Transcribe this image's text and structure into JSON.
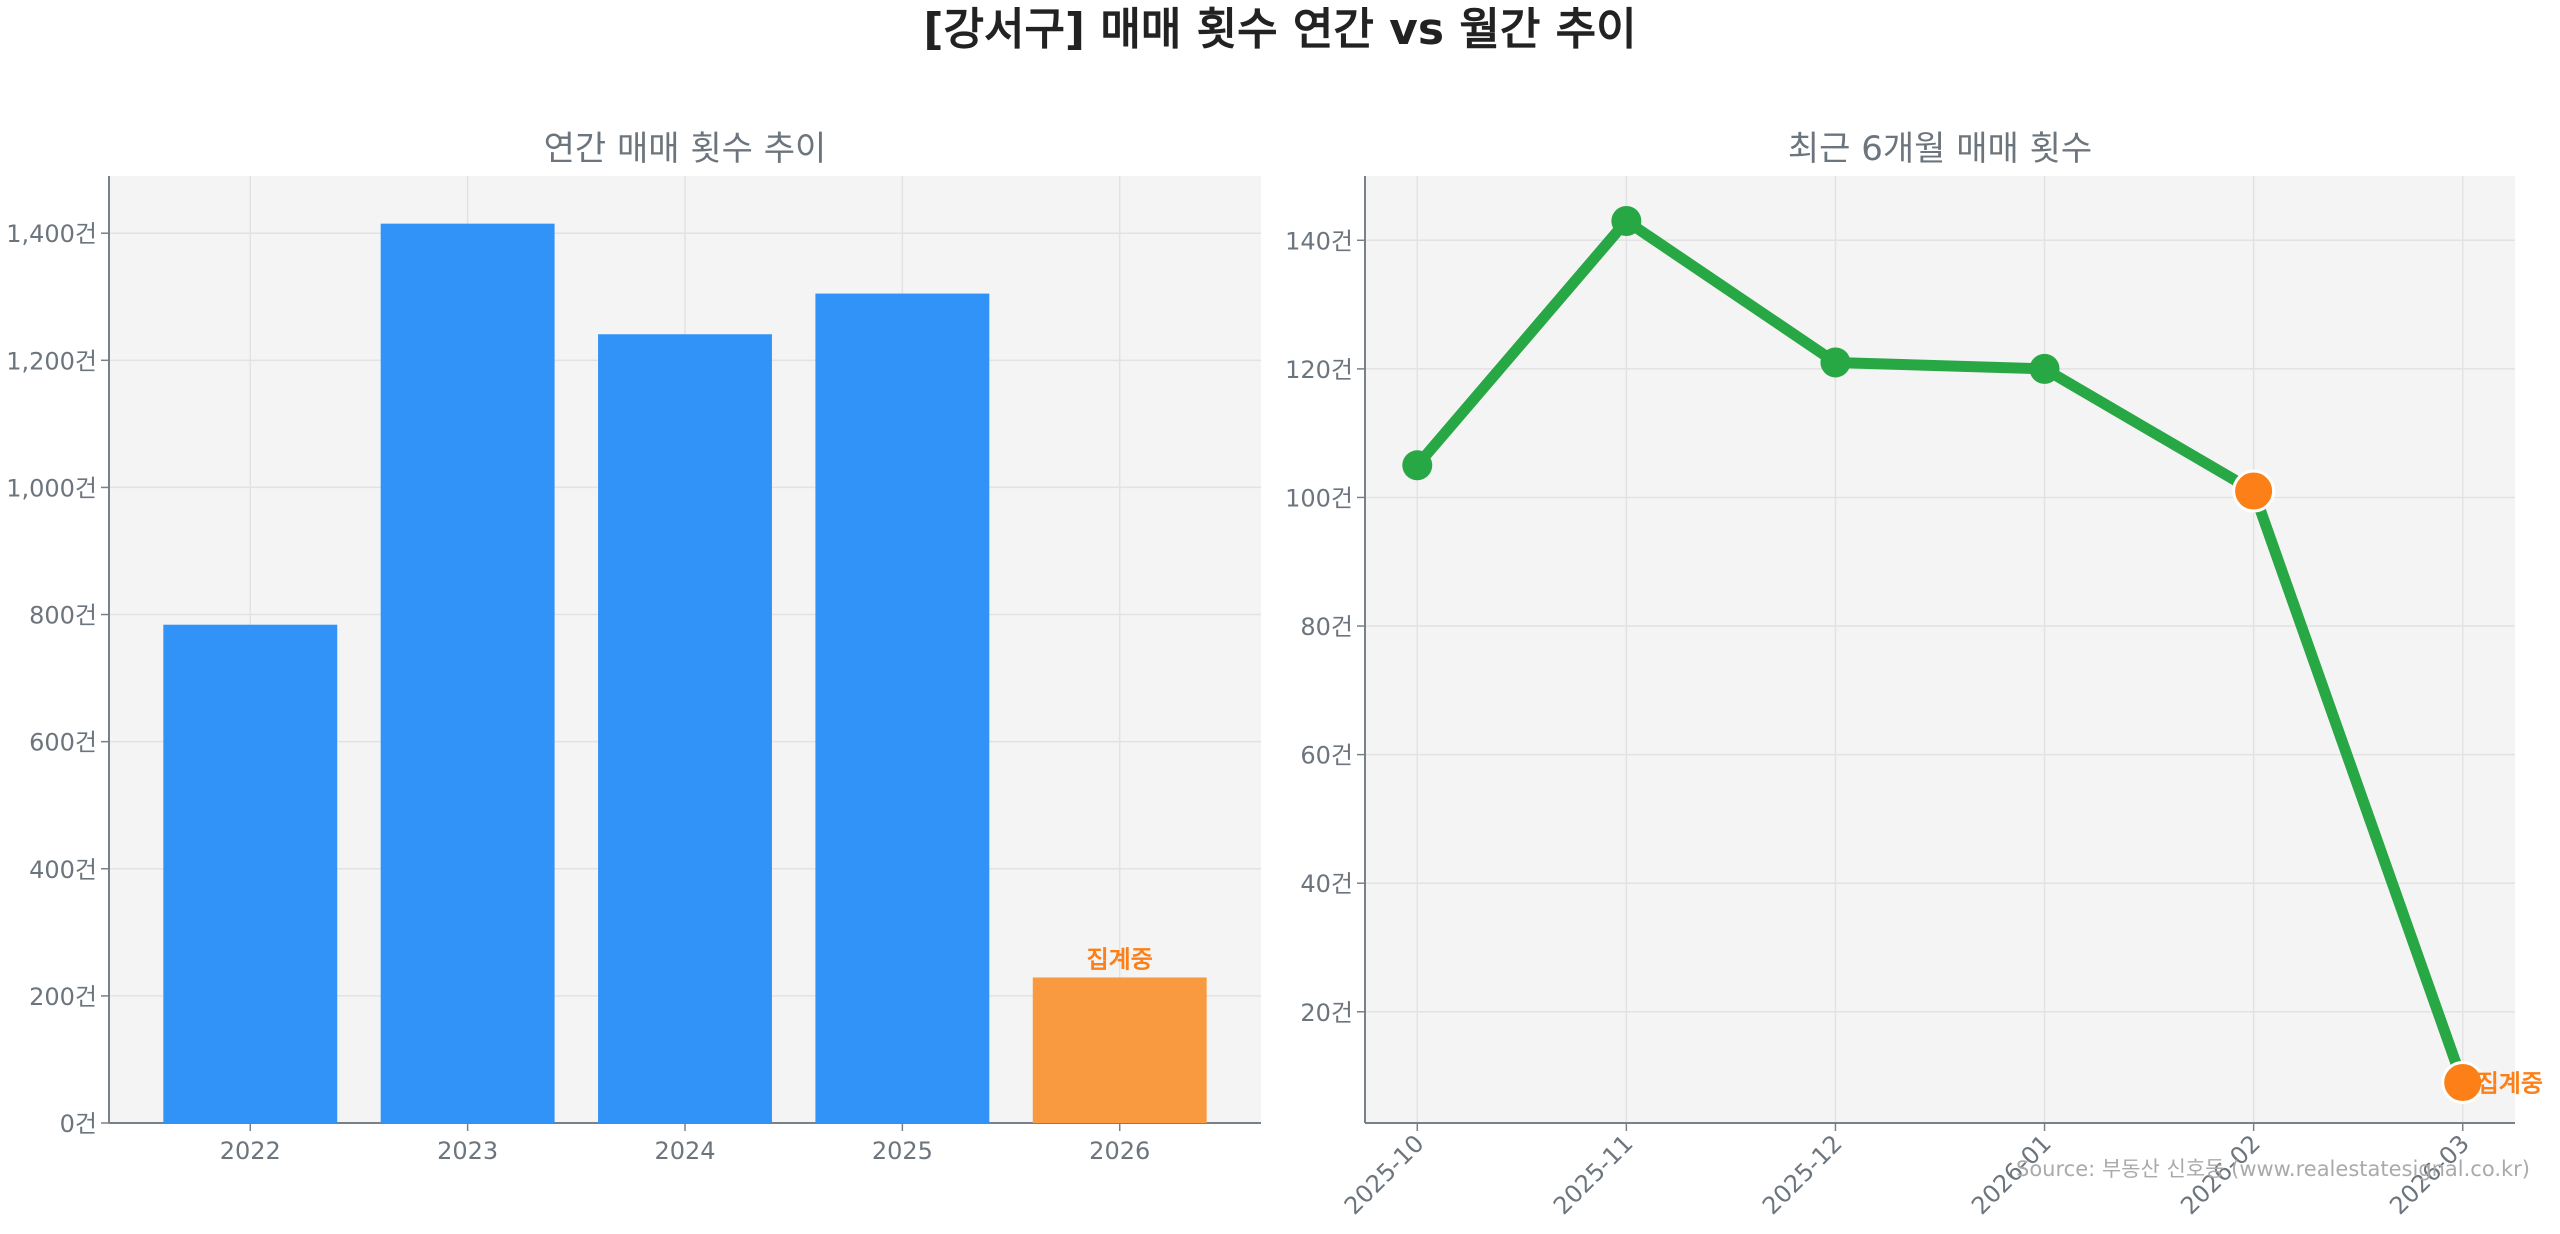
{
  "title": "[강서구] 매매 횟수 연간 vs 월간 추이",
  "source": "Source: 부동산 신호등 (www.realestatesignal.co.kr)",
  "colors": {
    "bar": "#3192f8",
    "bar_partial": "#f99a40",
    "line": "#28a745",
    "marker_partial": "#fd7f17",
    "note": "#fd7f17",
    "axes_bg": "#f4f4f4"
  },
  "chart_data": [
    {
      "type": "bar",
      "title": "연간 매매 횟수 추이",
      "categories": [
        "2022",
        "2023",
        "2024",
        "2025",
        "2026"
      ],
      "values": [
        784,
        1415,
        1241,
        1305,
        229
      ],
      "partial_flags": [
        false,
        false,
        false,
        false,
        true
      ],
      "annotation": "집계중",
      "yticks": [
        0,
        200,
        400,
        600,
        800,
        1000,
        1200,
        1400
      ],
      "ytick_labels": [
        "0건",
        "200건",
        "400건",
        "600건",
        "800건",
        "1,000건",
        "1,200건",
        "1,400건"
      ],
      "ylim": [
        0,
        1490
      ],
      "grid": true
    },
    {
      "type": "line",
      "title": "최근 6개월 매매 횟수",
      "categories": [
        "2025-10",
        "2025-11",
        "2025-12",
        "2026-01",
        "2026-02",
        "2026-03"
      ],
      "values": [
        105,
        143,
        121,
        120,
        101,
        9
      ],
      "partial_flags": [
        false,
        false,
        false,
        false,
        true,
        true
      ],
      "annotation": "집계중",
      "yticks": [
        20,
        40,
        60,
        80,
        100,
        120,
        140
      ],
      "ytick_labels": [
        "20건",
        "40건",
        "60건",
        "80건",
        "100건",
        "120건",
        "140건"
      ],
      "ylim": [
        2.7,
        150
      ],
      "grid": true
    }
  ]
}
